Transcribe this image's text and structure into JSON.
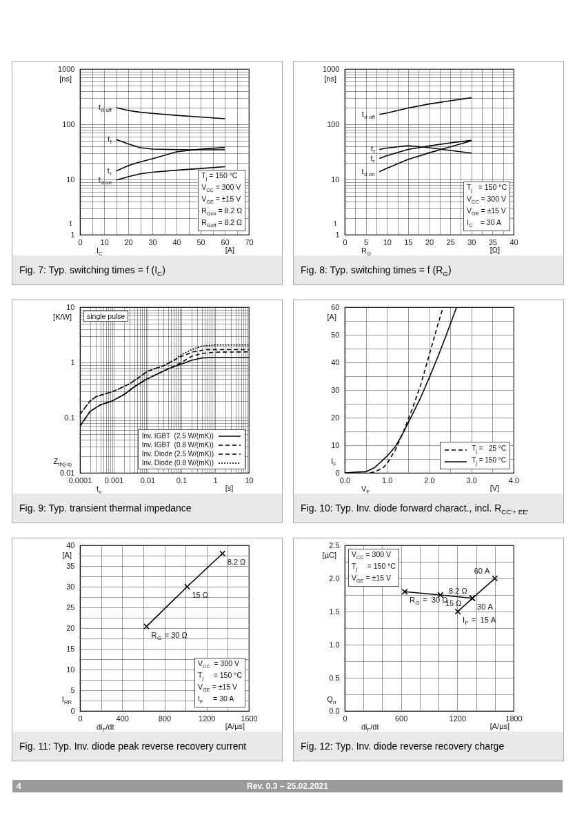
{
  "chart_data": [
    {
      "type": "line",
      "title": "Fig. 7: Typ. switching times = f (I$_{C}$)",
      "xlabel": "I$_{C}$",
      "ylabel": "t",
      "log": true,
      "grid": true,
      "legend": false,
      "annotations": [
        "[ns]",
        "[A]",
        "T$_{j}$ = 150 °C\nV$_{CC}$ = 300 V\nV$_{GE}$ = ±15 V\nR$_{Gon}$ = 8.2 Ω\nR$_{Goff}$ = 8.2 Ω"
      ],
      "xlim": [
        0,
        70
      ],
      "xticks": [
        0,
        {
          "value": 5,
          "label": null
        },
        10,
        {
          "value": 15,
          "label": null
        },
        20,
        {
          "value": 25,
          "label": null
        },
        30,
        {
          "value": 35,
          "label": null
        },
        40,
        {
          "value": 45,
          "label": null
        },
        50,
        {
          "value": 55,
          "label": null
        },
        60,
        {
          "value": 65,
          "label": null
        },
        70
      ],
      "ylim": [
        1,
        1000
      ],
      "yticks": [
        1,
        {
          "value": 2,
          "label": null
        },
        {
          "value": 3,
          "label": null
        },
        {
          "value": 4,
          "label": null
        },
        {
          "value": 5,
          "label": null
        },
        {
          "value": 6,
          "label": null
        },
        {
          "value": 7,
          "label": null
        },
        {
          "value": 8,
          "label": null
        },
        {
          "value": 9,
          "label": null
        },
        10,
        {
          "value": 20,
          "label": null
        },
        {
          "value": 30,
          "label": null
        },
        {
          "value": 40,
          "label": null
        },
        {
          "value": 50,
          "label": null
        },
        {
          "value": 60,
          "label": null
        },
        {
          "value": 70,
          "label": null
        },
        {
          "value": 80,
          "label": null
        },
        {
          "value": 90,
          "label": null
        },
        100,
        {
          "value": 200,
          "label": null
        },
        {
          "value": 300,
          "label": null
        },
        {
          "value": 400,
          "label": null
        },
        {
          "value": 500,
          "label": null
        },
        {
          "value": 600,
          "label": null
        },
        {
          "value": 700,
          "label": null
        },
        {
          "value": 800,
          "label": null
        },
        {
          "value": 900,
          "label": null
        },
        1000
      ],
      "x": [
        15,
        20,
        25,
        30,
        40,
        50,
        60
      ],
      "series": [
        {
          "name": "t$_{d off}$",
          "color": "#000000",
          "values": [
            200,
            178,
            165,
            157,
            145,
            135,
            126
          ]
        },
        {
          "name": "t$_{f}$",
          "color": "#000000",
          "values": [
            53,
            44,
            37.6,
            35.5,
            34.7,
            34.5,
            34.5
          ]
        },
        {
          "name": "t$_{r}$",
          "color": "#000000",
          "values": [
            14.2,
            17.8,
            20.8,
            23.7,
            31.6,
            35.5,
            38
          ]
        },
        {
          "name": "t$_{d on}$",
          "color": "#000000",
          "values": [
            9.7,
            11.2,
            12.7,
            13.5,
            14.7,
            15.8,
            17
          ]
        }
      ]
    },
    {
      "type": "line",
      "title": "Fig. 8: Typ. switching times = f (R$_{G}$)",
      "xlabel": "R$_{G}$",
      "ylabel": "t",
      "log": true,
      "grid": true,
      "legend": false,
      "annotations": [
        "[ns]",
        "[Ω]",
        "T$_{j}$   = 150 °C\nV$_{CC}$ = 300 V\nV$_{GE}$ = ±15 V\nI$_{C}$    = 30 A"
      ],
      "xlim": [
        0,
        40
      ],
      "xticks": [
        0,
        {
          "value": 2.5,
          "label": null
        },
        5,
        {
          "value": 7.5,
          "label": null
        },
        10,
        {
          "value": 12.5,
          "label": null
        },
        15,
        {
          "value": 17.5,
          "label": null
        },
        20,
        {
          "value": 22.5,
          "label": null
        },
        25,
        {
          "value": 27.5,
          "label": null
        },
        30,
        {
          "value": 32.5,
          "label": null
        },
        35,
        {
          "value": 37.5,
          "label": null
        },
        40
      ],
      "ylim": [
        1,
        1000
      ],
      "yticks": [
        1,
        {
          "value": 2,
          "label": null
        },
        {
          "value": 3,
          "label": null
        },
        {
          "value": 4,
          "label": null
        },
        {
          "value": 5,
          "label": null
        },
        {
          "value": 6,
          "label": null
        },
        {
          "value": 7,
          "label": null
        },
        {
          "value": 8,
          "label": null
        },
        {
          "value": 9,
          "label": null
        },
        10,
        {
          "value": 20,
          "label": null
        },
        {
          "value": 30,
          "label": null
        },
        {
          "value": 40,
          "label": null
        },
        {
          "value": 50,
          "label": null
        },
        {
          "value": 60,
          "label": null
        },
        {
          "value": 70,
          "label": null
        },
        {
          "value": 80,
          "label": null
        },
        {
          "value": 90,
          "label": null
        },
        100,
        {
          "value": 200,
          "label": null
        },
        {
          "value": 300,
          "label": null
        },
        {
          "value": 400,
          "label": null
        },
        {
          "value": 500,
          "label": null
        },
        {
          "value": 600,
          "label": null
        },
        {
          "value": 700,
          "label": null
        },
        {
          "value": 800,
          "label": null
        },
        {
          "value": 900,
          "label": null
        },
        1000
      ],
      "x": [
        8.2,
        10,
        15,
        20,
        25,
        30
      ],
      "series": [
        {
          "name": "t$_{d off}$",
          "color": "#000000",
          "values": [
            151,
            160,
            197,
            233,
            266,
            302
          ]
        },
        {
          "name": "t$_{f}$",
          "color": "#000000",
          "values": [
            35,
            37,
            41,
            37.5,
            33.5,
            30
          ]
        },
        {
          "name": "t$_{r}$",
          "color": "#000000",
          "values": [
            24,
            27,
            35,
            40.5,
            46,
            51
          ]
        },
        {
          "name": "t$_{d on}$",
          "color": "#000000",
          "values": [
            13.8,
            16,
            23,
            30.4,
            39,
            50
          ]
        }
      ]
    },
    {
      "type": "line",
      "title": "Fig. 9: Typ. transient thermal impedance",
      "xlabel": "t$_{p}$",
      "ylabel": "Z$_{th(j-s)}$",
      "log": "xy",
      "grid": true,
      "legend": "bottom right",
      "annotations": [
        "[K/W]",
        "[s]",
        "single pulse"
      ],
      "xlim": [
        0.0001,
        10
      ],
      "xticks": [
        0.0001,
        {
          "value": 0.0002,
          "label": null
        },
        {
          "value": 0.0003,
          "label": null
        },
        {
          "value": 0.0004,
          "label": null
        },
        {
          "value": 0.0005,
          "label": null
        },
        {
          "value": 0.0006,
          "label": null
        },
        {
          "value": 0.0007,
          "label": null
        },
        {
          "value": 0.0008,
          "label": null
        },
        {
          "value": 0.0009,
          "label": null
        },
        0.001,
        {
          "value": 0.002,
          "label": null
        },
        {
          "value": 0.003,
          "label": null
        },
        {
          "value": 0.004,
          "label": null
        },
        {
          "value": 0.005,
          "label": null
        },
        {
          "value": 0.006,
          "label": null
        },
        {
          "value": 0.007,
          "label": null
        },
        {
          "value": 0.008,
          "label": null
        },
        {
          "value": 0.009,
          "label": null
        },
        0.01,
        {
          "value": 0.02,
          "label": null
        },
        {
          "value": 0.03,
          "label": null
        },
        {
          "value": 0.04,
          "label": null
        },
        {
          "value": 0.05,
          "label": null
        },
        {
          "value": 0.06,
          "label": null
        },
        {
          "value": 0.07,
          "label": null
        },
        {
          "value": 0.08,
          "label": null
        },
        {
          "value": 0.09,
          "label": null
        },
        0.1,
        {
          "value": 0.2,
          "label": null
        },
        {
          "value": 0.3,
          "label": null
        },
        {
          "value": 0.4,
          "label": null
        },
        {
          "value": 0.5,
          "label": null
        },
        {
          "value": 0.6,
          "label": null
        },
        {
          "value": 0.7,
          "label": null
        },
        {
          "value": 0.8,
          "label": null
        },
        {
          "value": 0.9,
          "label": null
        },
        1,
        {
          "value": 2,
          "label": null
        },
        {
          "value": 3,
          "label": null
        },
        {
          "value": 4,
          "label": null
        },
        {
          "value": 5,
          "label": null
        },
        {
          "value": 6,
          "label": null
        },
        {
          "value": 7,
          "label": null
        },
        {
          "value": 8,
          "label": null
        },
        {
          "value": 9,
          "label": null
        },
        10
      ],
      "ylim": [
        0.01,
        10
      ],
      "yticks": [
        0.01,
        {
          "value": 0.02,
          "label": null
        },
        {
          "value": 0.03,
          "label": null
        },
        {
          "value": 0.04,
          "label": null
        },
        {
          "value": 0.05,
          "label": null
        },
        {
          "value": 0.06,
          "label": null
        },
        {
          "value": 0.07,
          "label": null
        },
        {
          "value": 0.08,
          "label": null
        },
        {
          "value": 0.09,
          "label": null
        },
        0.1,
        {
          "value": 0.2,
          "label": null
        },
        {
          "value": 0.3,
          "label": null
        },
        {
          "value": 0.4,
          "label": null
        },
        {
          "value": 0.5,
          "label": null
        },
        {
          "value": 0.6,
          "label": null
        },
        {
          "value": 0.7,
          "label": null
        },
        {
          "value": 0.8,
          "label": null
        },
        {
          "value": 0.9,
          "label": null
        },
        1,
        {
          "value": 2,
          "label": null
        },
        {
          "value": 3,
          "label": null
        },
        {
          "value": 4,
          "label": null
        },
        {
          "value": 5,
          "label": null
        },
        {
          "value": 6,
          "label": null
        },
        {
          "value": 7,
          "label": null
        },
        {
          "value": 8,
          "label": null
        },
        {
          "value": 9,
          "label": null
        },
        10
      ],
      "series": [
        {
          "name": "Inv. IGBT  (2.5 W/(mK))",
          "color": "#000000",
          "line_style": "solid",
          "x": [
            0.0001,
            0.0002,
            0.0004,
            0.0009,
            0.002,
            0.004,
            0.009,
            0.02,
            0.04,
            0.09,
            0.2,
            0.4,
            1,
            10
          ],
          "values": [
            0.07,
            0.13,
            0.17,
            0.2,
            0.26,
            0.36,
            0.49,
            0.62,
            0.76,
            0.91,
            1.09,
            1.2,
            1.23,
            1.23
          ]
        },
        {
          "name": "Inv. IGBT  (0.8 W/(mK))",
          "color": "#000000",
          "line_style": "dashed",
          "x": [
            0.0001,
            0.0002,
            0.0004,
            0.0009,
            0.002,
            0.004,
            0.009,
            0.02,
            0.04,
            0.09,
            0.2,
            0.4,
            1,
            10
          ],
          "values": [
            0.07,
            0.13,
            0.17,
            0.2,
            0.26,
            0.36,
            0.49,
            0.62,
            0.76,
            0.96,
            1.28,
            1.45,
            1.53,
            1.55
          ]
        },
        {
          "name": "Inv. Diode (2.5 W/(mK))",
          "color": "#000000",
          "line_style": "dashed",
          "x": [
            0.0001,
            0.0002,
            0.0003,
            0.001,
            0.003,
            0.01,
            0.03,
            0.06,
            0.1,
            0.22,
            0.55,
            10
          ],
          "values": [
            0.115,
            0.2,
            0.24,
            0.3,
            0.41,
            0.69,
            0.87,
            1.09,
            1.28,
            1.55,
            1.7,
            1.7
          ]
        },
        {
          "name": "Inv. Diode (0.8 W/(mK))",
          "color": "#000000",
          "line_style": "dotted",
          "x": [
            0.0001,
            0.0002,
            0.0003,
            0.001,
            0.003,
            0.01,
            0.03,
            0.06,
            0.1,
            0.2,
            0.4,
            1,
            10
          ],
          "values": [
            0.115,
            0.2,
            0.24,
            0.3,
            0.41,
            0.69,
            0.87,
            1.09,
            1.37,
            1.7,
            1.96,
            2.07,
            2.07
          ]
        }
      ]
    },
    {
      "type": "line",
      "title": "Fig. 10: Typ. Inv. diode forward charact., incl. R$_{CC'+ EE'}$",
      "xlabel": "V$_{F}$",
      "ylabel": "I$_{F}$",
      "grid": true,
      "legend": "bottom right",
      "annotations": [
        "[A]",
        "[V]"
      ],
      "xlim": [
        0,
        4
      ],
      "xticks": [
        {
          "value": 0,
          "label": "0.0"
        },
        {
          "value": 0.5,
          "label": null
        },
        {
          "value": 1,
          "label": "1.0"
        },
        {
          "value": 1.5,
          "label": null
        },
        {
          "value": 2,
          "label": "2.0"
        },
        {
          "value": 2.5,
          "label": null
        },
        {
          "value": 3,
          "label": "3.0"
        },
        {
          "value": 3.5,
          "label": null
        },
        {
          "value": 4,
          "label": "4.0"
        }
      ],
      "ylim": [
        0,
        60
      ],
      "yticks": [
        0,
        {
          "value": 5,
          "label": null
        },
        10,
        {
          "value": 15,
          "label": null
        },
        20,
        {
          "value": 25,
          "label": null
        },
        30,
        {
          "value": 35,
          "label": null
        },
        40,
        {
          "value": 45,
          "label": null
        },
        50,
        {
          "value": 55,
          "label": null
        },
        60
      ],
      "series": [
        {
          "name": "T$_{j}$ =   25 °C",
          "color": "#000000",
          "line_style": "dashed",
          "x": [
            0.6,
            0.7,
            0.9,
            1.0,
            1.2,
            1.4,
            1.6,
            1.8,
            2.0,
            2.2,
            2.33
          ],
          "values": [
            0,
            0.3,
            1.7,
            3.3,
            8.3,
            15.3,
            23.2,
            31.9,
            42.6,
            53.4,
            60
          ]
        },
        {
          "name": "T$_{j}$ = 150 °C",
          "color": "#000000",
          "line_style": "solid",
          "x": [
            0,
            0.5,
            0.7,
            0.9,
            1.0,
            1.2,
            1.4,
            1.6,
            1.8,
            2.0,
            2.2,
            2.4,
            2.65
          ],
          "values": [
            0,
            0.4,
            1.8,
            4.6,
            6,
            9.5,
            14.9,
            21.1,
            27.3,
            34.4,
            41.8,
            49.7,
            60
          ]
        }
      ]
    },
    {
      "type": "line",
      "title": "Fig. 11: Typ. Inv. diode peak reverse recovery current",
      "xlabel": "di$_{F}$/dt",
      "ylabel": "I$_{RR}$",
      "grid": true,
      "marker": "cross",
      "annotations": [
        "[A]",
        "[A/µs]",
        "V$_{CC}$  = 300 V\nT$_{j}$     = 150 °C\nV$_{GE}$ = ±15 V\nI$_{F}$     = 30 A",
        {
          "text": "R$_{G}$ = 30 Ω",
          "x": 630,
          "y": 20.4
        },
        {
          "text": "15 Ω",
          "x": 1015,
          "y": 30
        },
        {
          "text": "8.2 Ω",
          "x": 1350,
          "y": 38
        }
      ],
      "xlim": [
        0,
        1600
      ],
      "xticks": [
        0,
        {
          "value": 200,
          "label": null
        },
        400,
        {
          "value": 600,
          "label": null
        },
        800,
        {
          "value": 1000,
          "label": null
        },
        1200,
        {
          "value": 1400,
          "label": null
        },
        1600
      ],
      "ylim": [
        0,
        40
      ],
      "yticks": [
        0,
        {
          "value": 2.5,
          "label": null
        },
        5,
        {
          "value": 7.5,
          "label": null
        },
        10,
        {
          "value": 12.5,
          "label": null
        },
        15,
        {
          "value": 17.5,
          "label": null
        },
        20,
        {
          "value": 22.5,
          "label": null
        },
        25,
        {
          "value": 27.5,
          "label": null
        },
        30,
        {
          "value": 32.5,
          "label": null
        },
        35,
        {
          "value": 37.5,
          "label": null
        },
        40
      ],
      "x": [
        630,
        1015,
        1350
      ],
      "series": [
        {
          "color": "#000000",
          "values": [
            20.4,
            30,
            38
          ]
        }
      ]
    },
    {
      "type": "line",
      "title": "Fig. 12: Typ. Inv. diode reverse recovery charge",
      "xlabel": "di$_{F}$/dt",
      "ylabel": "Q$_{rr}$",
      "grid": true,
      "marker": "cross",
      "annotations": [
        "[µC]",
        "[A/µs]",
        "V$_{CC}$ = 300 V\nT$_{j}$     = 150 °C\nV$_{GE}$ = ±15 V",
        {
          "text": "R$_{G}$ =  30 Ω",
          "x": 640,
          "y": 1.8
        },
        {
          "text": "15 Ω",
          "x": 1020,
          "y": 1.75
        },
        {
          "text": "30 A",
          "x": 1360,
          "y": 1.7
        },
        {
          "text": "8.2 Ω",
          "x": 1360,
          "y": 1.7
        },
        {
          "text": "I$_{F}$ =  15 A",
          "x": 1205,
          "y": 1.5
        },
        {
          "text": "60 A",
          "x": 1600,
          "y": 2.0
        },
        "4",
        "Rev. 0.3 – 25.02.2021"
      ],
      "xlim": [
        0,
        1800
      ],
      "xticks": [
        0,
        {
          "value": 200,
          "label": null
        },
        {
          "value": 400,
          "label": null
        },
        600,
        {
          "value": 800,
          "label": null
        },
        {
          "value": 1000,
          "label": null
        },
        1200,
        {
          "value": 1400,
          "label": null
        },
        {
          "value": 1600,
          "label": null
        },
        1800
      ],
      "ylim": [
        0,
        2.5
      ],
      "yticks": [
        {
          "value": 0,
          "label": "0.0"
        },
        {
          "value": 0.25,
          "label": null
        },
        {
          "value": 0.5,
          "label": "0.5"
        },
        {
          "value": 0.75,
          "label": null
        },
        {
          "value": 1,
          "label": "1.0"
        },
        {
          "value": 1.25,
          "label": null
        },
        {
          "value": 1.5,
          "label": "1.5"
        },
        {
          "value": 1.75,
          "label": null
        },
        {
          "value": 2,
          "label": "2.0"
        },
        {
          "value": 2.25,
          "label": null
        },
        {
          "value": 2.5,
          "label": "2.5"
        }
      ],
      "series": [
        {
          "color": "#000000",
          "x": [
            640,
            1020,
            1360
          ],
          "values": [
            1.8,
            1.75,
            1.7
          ]
        },
        {
          "color": "#000000",
          "x": [
            1205,
            1360,
            1600
          ],
          "values": [
            1.5,
            1.7,
            2.0
          ]
        }
      ]
    }
  ]
}
